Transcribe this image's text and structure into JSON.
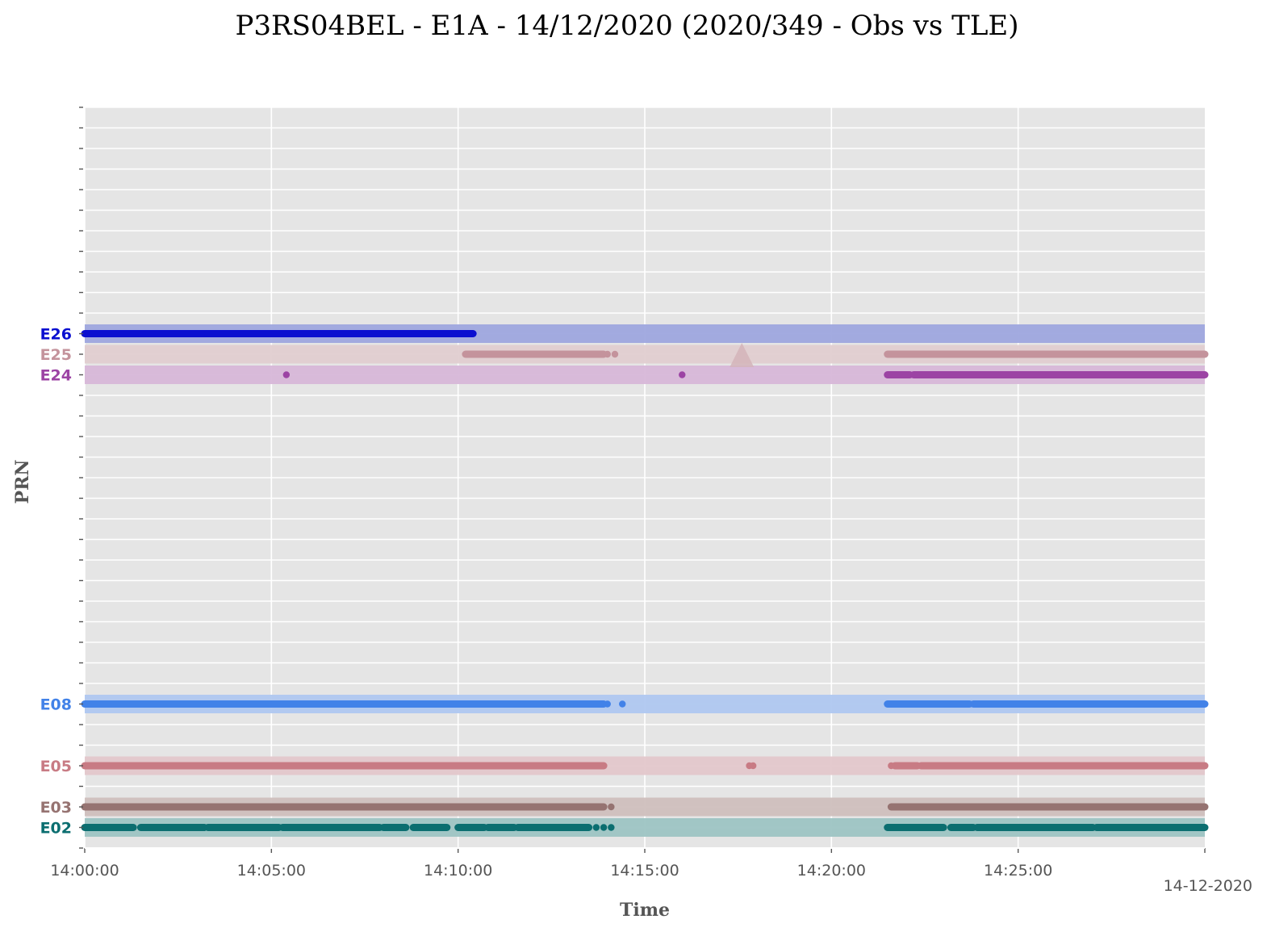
{
  "chart_data": {
    "type": "scatter",
    "title": "P3RS04BEL - E1A - 14/12/2020 (2020/349 - Obs vs TLE)",
    "xlabel": "Time",
    "ylabel": "PRN",
    "date_label": "14-12-2020",
    "x_ticks": [
      "14:00:00",
      "14:05:00",
      "14:10:00",
      "14:15:00",
      "14:20:00",
      "14:25:00"
    ],
    "xlim_minutes": [
      0,
      30
    ],
    "grid": true,
    "y_slots": 36,
    "series": [
      {
        "name": "E02",
        "slot": 1,
        "color": "#0b6e70",
        "band_color": "#9dc4c3",
        "tle_windows": [
          [
            0,
            30
          ]
        ],
        "obs_segments": [
          [
            0,
            1.3
          ],
          [
            1.5,
            2.3
          ],
          [
            2.3,
            3.2
          ],
          [
            3.3,
            5.2
          ],
          [
            5.3,
            7.9
          ],
          [
            8.0,
            8.6
          ],
          [
            8.8,
            9.7
          ],
          [
            10.0,
            10.7
          ],
          [
            10.8,
            11.5
          ],
          [
            11.6,
            13.5
          ],
          [
            21.5,
            23.0
          ],
          [
            23.2,
            23.8
          ],
          [
            23.9,
            27.0
          ],
          [
            27.1,
            30
          ]
        ],
        "obs_points": [
          13.7,
          13.9,
          14.1
        ]
      },
      {
        "name": "E03",
        "slot": 2,
        "color": "#967371",
        "band_color": "#cfbfbd",
        "tle_windows": [
          [
            0,
            30
          ]
        ],
        "obs_segments": [
          [
            0,
            13.9
          ],
          [
            21.6,
            23.0
          ],
          [
            23.0,
            30
          ]
        ],
        "obs_points": [
          14.1
        ]
      },
      {
        "name": "E05",
        "slot": 4,
        "color": "#c87b84",
        "band_color": "#e3c7cb",
        "tle_windows": [
          [
            0,
            30
          ]
        ],
        "obs_segments": [
          [
            0,
            13.9
          ],
          [
            21.7,
            22.3
          ],
          [
            22.4,
            30
          ]
        ],
        "obs_points": [
          17.8,
          17.9,
          21.6
        ]
      },
      {
        "name": "E08",
        "slot": 7,
        "color": "#4282e8",
        "band_color": "#afc7f0",
        "tle_windows": [
          [
            0,
            30
          ]
        ],
        "obs_segments": [
          [
            0,
            13.9
          ],
          [
            21.5,
            23.7
          ],
          [
            23.8,
            30
          ]
        ],
        "obs_points": [
          14.0,
          14.4
        ]
      },
      {
        "name": "E24",
        "slot": 23,
        "color": "#9c44a4",
        "band_color": "#d7b7d8",
        "tle_windows": [
          [
            0,
            30
          ]
        ],
        "obs_segments": [
          [
            21.5,
            22.1
          ],
          [
            22.2,
            30
          ]
        ],
        "obs_points": [
          5.4,
          16.0
        ]
      },
      {
        "name": "E25",
        "slot": 24,
        "color": "#c4939c",
        "band_color": "#e0cdd0",
        "tle_windows": [
          [
            0,
            30
          ]
        ],
        "obs_segments": [
          [
            10.2,
            13.9
          ],
          [
            21.5,
            30
          ]
        ],
        "obs_points": [
          14.0,
          14.2
        ],
        "marker": {
          "shape": "triangle",
          "x": 17.6
        }
      },
      {
        "name": "E26",
        "slot": 25,
        "color": "#0a0fd0",
        "band_color": "#9ea6de",
        "tle_windows": [
          [
            0,
            30
          ]
        ],
        "obs_segments": [
          [
            0,
            3.3
          ],
          [
            3.3,
            10.4
          ]
        ],
        "obs_points": []
      }
    ]
  }
}
